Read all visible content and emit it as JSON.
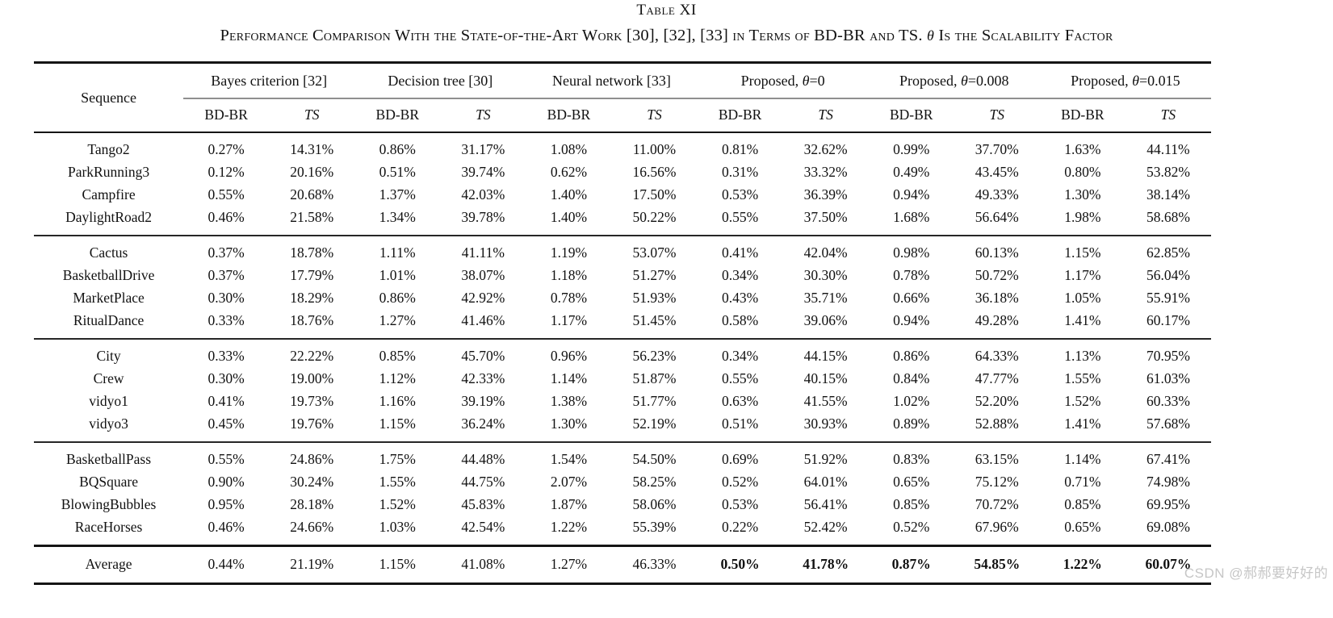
{
  "title": "Table XI",
  "subtitle": {
    "pre": "Performance Comparison With the State-of-the-Art Work [30], [32], [33] in Terms of BD-BR and TS. ",
    "theta": "θ",
    "post": " Is the Scalability Factor"
  },
  "table": {
    "sequence_header": "Sequence",
    "subheader_bdbr": "BD-BR",
    "subheader_ts": "TS",
    "col_groups": [
      {
        "pre": "Bayes criterion [32]",
        "theta": "",
        "post": ""
      },
      {
        "pre": "Decision tree [30]",
        "theta": "",
        "post": ""
      },
      {
        "pre": "Neural network [33]",
        "theta": "",
        "post": ""
      },
      {
        "pre": "Proposed, ",
        "theta": "θ",
        "post": "=0"
      },
      {
        "pre": "Proposed, ",
        "theta": "θ",
        "post": "=0.008"
      },
      {
        "pre": "Proposed, ",
        "theta": "θ",
        "post": "=0.015"
      }
    ],
    "groups": [
      [
        {
          "name": "Tango2",
          "values": [
            "0.27%",
            "14.31%",
            "0.86%",
            "31.17%",
            "1.08%",
            "11.00%",
            "0.81%",
            "32.62%",
            "0.99%",
            "37.70%",
            "1.63%",
            "44.11%"
          ]
        },
        {
          "name": "ParkRunning3",
          "values": [
            "0.12%",
            "20.16%",
            "0.51%",
            "39.74%",
            "0.62%",
            "16.56%",
            "0.31%",
            "33.32%",
            "0.49%",
            "43.45%",
            "0.80%",
            "53.82%"
          ]
        },
        {
          "name": "Campfire",
          "values": [
            "0.55%",
            "20.68%",
            "1.37%",
            "42.03%",
            "1.40%",
            "17.50%",
            "0.53%",
            "36.39%",
            "0.94%",
            "49.33%",
            "1.30%",
            "38.14%"
          ]
        },
        {
          "name": "DaylightRoad2",
          "values": [
            "0.46%",
            "21.58%",
            "1.34%",
            "39.78%",
            "1.40%",
            "50.22%",
            "0.55%",
            "37.50%",
            "1.68%",
            "56.64%",
            "1.98%",
            "58.68%"
          ]
        }
      ],
      [
        {
          "name": "Cactus",
          "values": [
            "0.37%",
            "18.78%",
            "1.11%",
            "41.11%",
            "1.19%",
            "53.07%",
            "0.41%",
            "42.04%",
            "0.98%",
            "60.13%",
            "1.15%",
            "62.85%"
          ]
        },
        {
          "name": "BasketballDrive",
          "values": [
            "0.37%",
            "17.79%",
            "1.01%",
            "38.07%",
            "1.18%",
            "51.27%",
            "0.34%",
            "30.30%",
            "0.78%",
            "50.72%",
            "1.17%",
            "56.04%"
          ]
        },
        {
          "name": "MarketPlace",
          "values": [
            "0.30%",
            "18.29%",
            "0.86%",
            "42.92%",
            "0.78%",
            "51.93%",
            "0.43%",
            "35.71%",
            "0.66%",
            "36.18%",
            "1.05%",
            "55.91%"
          ]
        },
        {
          "name": "RitualDance",
          "values": [
            "0.33%",
            "18.76%",
            "1.27%",
            "41.46%",
            "1.17%",
            "51.45%",
            "0.58%",
            "39.06%",
            "0.94%",
            "49.28%",
            "1.41%",
            "60.17%"
          ]
        }
      ],
      [
        {
          "name": "City",
          "values": [
            "0.33%",
            "22.22%",
            "0.85%",
            "45.70%",
            "0.96%",
            "56.23%",
            "0.34%",
            "44.15%",
            "0.86%",
            "64.33%",
            "1.13%",
            "70.95%"
          ]
        },
        {
          "name": "Crew",
          "values": [
            "0.30%",
            "19.00%",
            "1.12%",
            "42.33%",
            "1.14%",
            "51.87%",
            "0.55%",
            "40.15%",
            "0.84%",
            "47.77%",
            "1.55%",
            "61.03%"
          ]
        },
        {
          "name": "vidyo1",
          "values": [
            "0.41%",
            "19.73%",
            "1.16%",
            "39.19%",
            "1.38%",
            "51.77%",
            "0.63%",
            "41.55%",
            "1.02%",
            "52.20%",
            "1.52%",
            "60.33%"
          ]
        },
        {
          "name": "vidyo3",
          "values": [
            "0.45%",
            "19.76%",
            "1.15%",
            "36.24%",
            "1.30%",
            "52.19%",
            "0.51%",
            "30.93%",
            "0.89%",
            "52.88%",
            "1.41%",
            "57.68%"
          ]
        }
      ],
      [
        {
          "name": "BasketballPass",
          "values": [
            "0.55%",
            "24.86%",
            "1.75%",
            "44.48%",
            "1.54%",
            "54.50%",
            "0.69%",
            "51.92%",
            "0.83%",
            "63.15%",
            "1.14%",
            "67.41%"
          ]
        },
        {
          "name": "BQSquare",
          "values": [
            "0.90%",
            "30.24%",
            "1.55%",
            "44.75%",
            "2.07%",
            "58.25%",
            "0.52%",
            "64.01%",
            "0.65%",
            "75.12%",
            "0.71%",
            "74.98%"
          ]
        },
        {
          "name": "BlowingBubbles",
          "values": [
            "0.95%",
            "28.18%",
            "1.52%",
            "45.83%",
            "1.87%",
            "58.06%",
            "0.53%",
            "56.41%",
            "0.85%",
            "70.72%",
            "0.85%",
            "69.95%"
          ]
        },
        {
          "name": "RaceHorses",
          "values": [
            "0.46%",
            "24.66%",
            "1.03%",
            "42.54%",
            "1.22%",
            "55.39%",
            "0.22%",
            "52.42%",
            "0.52%",
            "67.96%",
            "0.65%",
            "69.08%"
          ]
        }
      ]
    ],
    "average": {
      "name": "Average",
      "values": [
        "0.44%",
        "21.19%",
        "1.15%",
        "41.08%",
        "1.27%",
        "46.33%",
        "0.50%",
        "41.78%",
        "0.87%",
        "54.85%",
        "1.22%",
        "60.07%"
      ],
      "bold_start": 6
    }
  },
  "watermark": "CSDN @郝郝要好好的"
}
